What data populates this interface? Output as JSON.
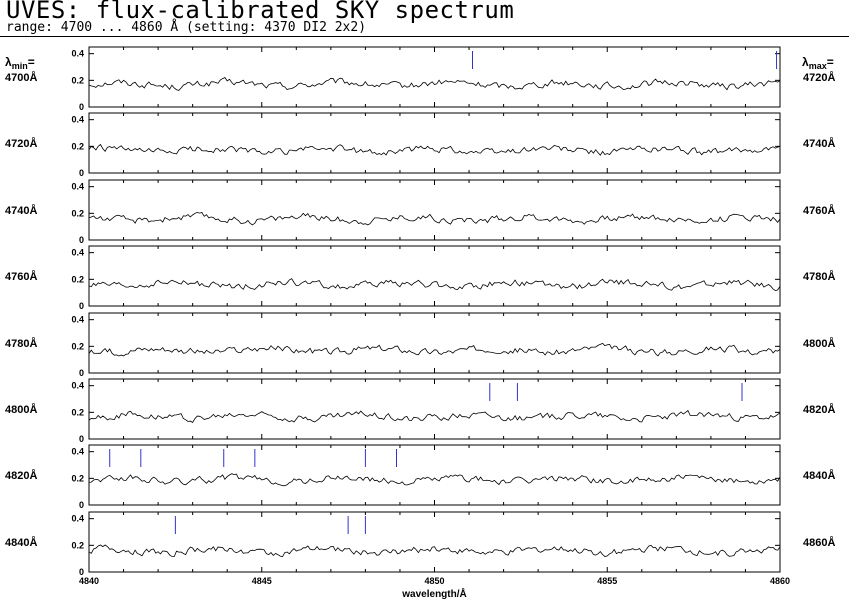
{
  "header": {
    "title": "UVES: flux-calibrated SKY spectrum",
    "subtitle": "range: 4700 ... 4860 Å (setting: 4370 DI2 2x2)"
  },
  "labels": {
    "lambda_symbol": "λ",
    "min_sub": "min",
    "max_sub": "max",
    "equals": "="
  },
  "chart_data": {
    "type": "line",
    "xlabel": "wavelength/Å",
    "panel_ylim": [
      0,
      0.45
    ],
    "y_ticks": [
      "0",
      "0.2",
      "0.4"
    ],
    "bottom_x_ticks": [
      4840,
      4845,
      4850,
      4855,
      4860
    ],
    "line_color": "#000000",
    "marker_color": "#3333cc",
    "panels": [
      {
        "xmin": 4700,
        "xmax": 4720,
        "left_label": "4700Å",
        "right_label": "4720Å",
        "level": 0.17,
        "markers": [
          4711.1,
          4719.9
        ]
      },
      {
        "xmin": 4720,
        "xmax": 4740,
        "left_label": "4720Å",
        "right_label": "4740Å",
        "level": 0.17,
        "markers": []
      },
      {
        "xmin": 4740,
        "xmax": 4760,
        "left_label": "4740Å",
        "right_label": "4760Å",
        "level": 0.16,
        "markers": []
      },
      {
        "xmin": 4760,
        "xmax": 4780,
        "left_label": "4760Å",
        "right_label": "4780Å",
        "level": 0.16,
        "markers": []
      },
      {
        "xmin": 4780,
        "xmax": 4800,
        "left_label": "4780Å",
        "right_label": "4800Å",
        "level": 0.17,
        "markers": []
      },
      {
        "xmin": 4800,
        "xmax": 4820,
        "left_label": "4800Å",
        "right_label": "4820Å",
        "level": 0.17,
        "markers": [
          4811.6,
          4812.4,
          4818.9
        ]
      },
      {
        "xmin": 4820,
        "xmax": 4840,
        "left_label": "4820Å",
        "right_label": "4840Å",
        "level": 0.19,
        "markers": [
          4820.6,
          4821.5,
          4823.9,
          4824.8,
          4828.0,
          4828.9
        ]
      },
      {
        "xmin": 4840,
        "xmax": 4860,
        "left_label": "4840Å",
        "right_label": "4860Å",
        "level": 0.16,
        "markers": [
          4842.5,
          4847.5,
          4848.0
        ]
      }
    ]
  }
}
